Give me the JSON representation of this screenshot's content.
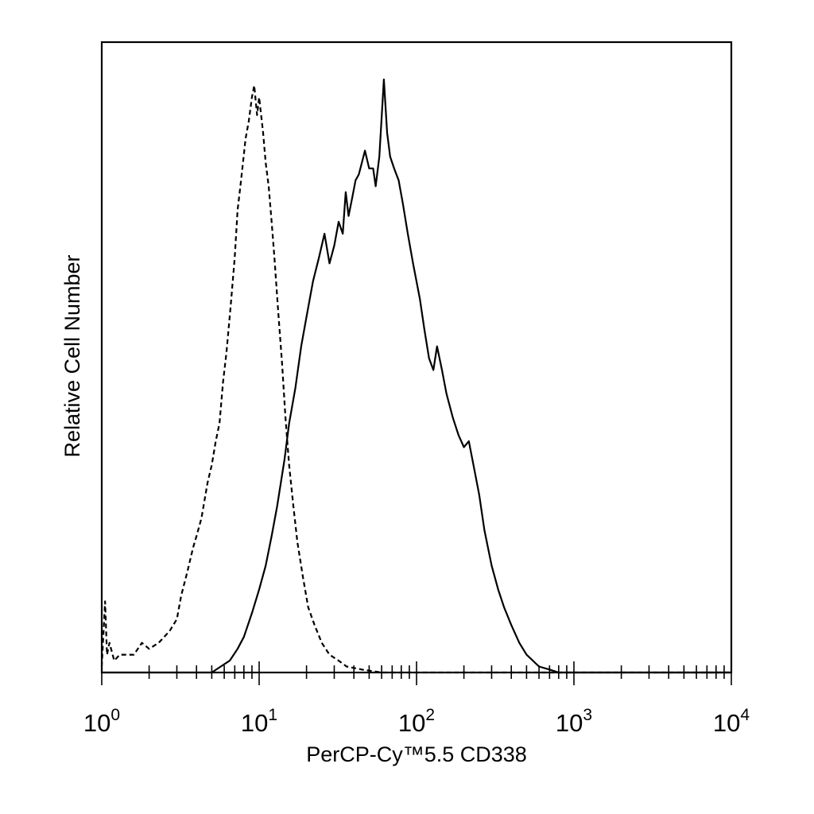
{
  "chart_data": {
    "type": "line",
    "title": "",
    "xlabel": "PerCP-Cy™5.5 CD338",
    "ylabel": "Relative Cell Number",
    "x_scale": "log",
    "xlim": [
      1,
      10000
    ],
    "ylim": [
      0,
      100
    ],
    "grid": false,
    "legend": "none",
    "x_tick_labels": [
      {
        "base": "10",
        "exp": "0"
      },
      {
        "base": "10",
        "exp": "1"
      },
      {
        "base": "10",
        "exp": "2"
      },
      {
        "base": "10",
        "exp": "3"
      },
      {
        "base": "10",
        "exp": "4"
      }
    ],
    "series": [
      {
        "style": "dashed",
        "points": [
          [
            1.0,
            1
          ],
          [
            1.05,
            12
          ],
          [
            1.08,
            3
          ],
          [
            1.12,
            5
          ],
          [
            1.2,
            2
          ],
          [
            1.3,
            3
          ],
          [
            1.45,
            3
          ],
          [
            1.6,
            3
          ],
          [
            1.8,
            5
          ],
          [
            2.0,
            4
          ],
          [
            2.3,
            5
          ],
          [
            2.7,
            7
          ],
          [
            3.0,
            9
          ],
          [
            3.2,
            13
          ],
          [
            3.5,
            17
          ],
          [
            3.8,
            21
          ],
          [
            4.0,
            23
          ],
          [
            4.3,
            26
          ],
          [
            4.7,
            32
          ],
          [
            5.0,
            35
          ],
          [
            5.3,
            39
          ],
          [
            5.6,
            42
          ],
          [
            5.9,
            49
          ],
          [
            6.2,
            54
          ],
          [
            6.6,
            62
          ],
          [
            7.0,
            70
          ],
          [
            7.3,
            78
          ],
          [
            7.6,
            82
          ],
          [
            7.9,
            86
          ],
          [
            8.2,
            90
          ],
          [
            8.6,
            93
          ],
          [
            9.0,
            97
          ],
          [
            9.3,
            99
          ],
          [
            9.7,
            94
          ],
          [
            10.0,
            97
          ],
          [
            10.3,
            94
          ],
          [
            10.6,
            91
          ],
          [
            11.0,
            86
          ],
          [
            11.5,
            82
          ],
          [
            12.0,
            76
          ],
          [
            12.5,
            70
          ],
          [
            13.2,
            61
          ],
          [
            14.0,
            52
          ],
          [
            14.7,
            43
          ],
          [
            15.5,
            35
          ],
          [
            16.5,
            28
          ],
          [
            17.5,
            22
          ],
          [
            19.0,
            16
          ],
          [
            20.5,
            11
          ],
          [
            22.5,
            8
          ],
          [
            25.0,
            5
          ],
          [
            28.0,
            3
          ],
          [
            32.0,
            2
          ],
          [
            36.0,
            1
          ],
          [
            45.0,
            0.5
          ],
          [
            60.0,
            0
          ],
          [
            100.0,
            0
          ],
          [
            1000.0,
            0
          ],
          [
            10000.0,
            0
          ]
        ]
      },
      {
        "style": "solid",
        "points": [
          [
            1.0,
            0
          ],
          [
            4.0,
            0
          ],
          [
            5.0,
            0
          ],
          [
            5.7,
            1
          ],
          [
            6.5,
            2
          ],
          [
            7.3,
            4
          ],
          [
            8.0,
            6
          ],
          [
            9.0,
            10
          ],
          [
            10.0,
            14
          ],
          [
            11.0,
            18
          ],
          [
            12.0,
            23
          ],
          [
            13.0,
            28
          ],
          [
            14.5,
            36
          ],
          [
            15.5,
            42
          ],
          [
            17.0,
            48
          ],
          [
            18.5,
            55
          ],
          [
            20.0,
            60
          ],
          [
            22.0,
            66
          ],
          [
            24.0,
            70
          ],
          [
            26.0,
            74
          ],
          [
            28.0,
            69
          ],
          [
            30.0,
            72
          ],
          [
            32.0,
            76
          ],
          [
            34.0,
            74
          ],
          [
            35.5,
            81
          ],
          [
            37.0,
            77
          ],
          [
            39.0,
            80
          ],
          [
            41.0,
            83
          ],
          [
            43.0,
            84
          ],
          [
            45.0,
            86
          ],
          [
            47.0,
            88
          ],
          [
            50.0,
            85
          ],
          [
            53.0,
            85
          ],
          [
            55.0,
            82
          ],
          [
            58.0,
            87
          ],
          [
            62.0,
            100
          ],
          [
            65.0,
            91
          ],
          [
            68.0,
            87
          ],
          [
            72.0,
            85
          ],
          [
            77.0,
            83
          ],
          [
            82.0,
            79
          ],
          [
            88.0,
            74
          ],
          [
            95.0,
            69
          ],
          [
            105.0,
            63
          ],
          [
            112.0,
            58
          ],
          [
            120.0,
            53
          ],
          [
            128.0,
            51
          ],
          [
            135.0,
            55
          ],
          [
            145.0,
            51
          ],
          [
            155.0,
            47
          ],
          [
            170.0,
            43
          ],
          [
            185.0,
            40
          ],
          [
            200.0,
            38
          ],
          [
            215.0,
            39
          ],
          [
            230.0,
            35
          ],
          [
            250.0,
            30
          ],
          [
            270.0,
            24
          ],
          [
            300.0,
            18
          ],
          [
            330.0,
            14
          ],
          [
            360.0,
            11
          ],
          [
            400.0,
            8
          ],
          [
            450.0,
            5
          ],
          [
            500.0,
            3
          ],
          [
            600.0,
            1
          ],
          [
            700.0,
            0.5
          ],
          [
            800.0,
            0
          ],
          [
            1000.0,
            0
          ],
          [
            10000.0,
            0
          ]
        ]
      }
    ]
  }
}
